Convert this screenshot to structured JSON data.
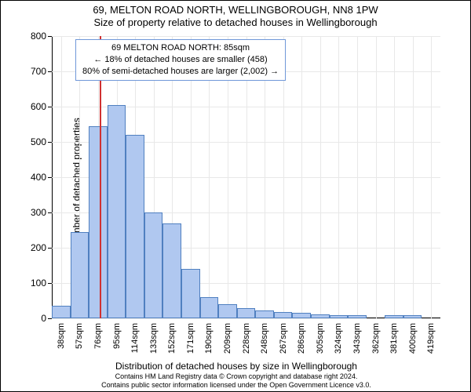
{
  "title": "69, MELTON ROAD NORTH, WELLINGBOROUGH, NN8 1PW",
  "subtitle": "Size of property relative to detached houses in Wellingborough",
  "y_axis_label": "Number of detached properties",
  "x_axis_label": "Distribution of detached houses by size in Wellingborough",
  "footer_line1": "Contains HM Land Registry data © Crown copyright and database right 2024.",
  "footer_line2": "Contains public sector information licensed under the Open Government Licence v3.0.",
  "callout": {
    "line1": "69 MELTON ROAD NORTH: 85sqm",
    "line2": "← 18% of detached houses are smaller (458)",
    "line3": "80% of semi-detached houses are larger (2,002) →"
  },
  "chart": {
    "type": "histogram",
    "ylim": [
      0,
      800
    ],
    "ytick_step": 100,
    "yticks": [
      0,
      100,
      200,
      300,
      400,
      500,
      600,
      700,
      800
    ],
    "categories": [
      "38sqm",
      "57sqm",
      "76sqm",
      "95sqm",
      "114sqm",
      "133sqm",
      "152sqm",
      "171sqm",
      "190sqm",
      "209sqm",
      "228sqm",
      "248sqm",
      "267sqm",
      "286sqm",
      "305sqm",
      "324sqm",
      "343sqm",
      "362sqm",
      "381sqm",
      "400sqm",
      "419sqm"
    ],
    "values": [
      35,
      245,
      545,
      605,
      520,
      300,
      270,
      140,
      60,
      40,
      30,
      22,
      18,
      15,
      12,
      10,
      10,
      0,
      8,
      8,
      0
    ],
    "bar_fill": "#b0c8f0",
    "bar_border": "#5080c0",
    "background_color": "#ffffff",
    "grid_color": "#e8e8e8",
    "marker_color": "#d03030",
    "marker_value_sqm": 85,
    "x_range_sqm": [
      38,
      419
    ],
    "title_fontsize": 13,
    "axis_label_fontsize": 12,
    "tick_fontsize": 11,
    "bar_width_ratio": 1.0,
    "callout_border": "#7098d8",
    "callout_bg": "#ffffff"
  }
}
